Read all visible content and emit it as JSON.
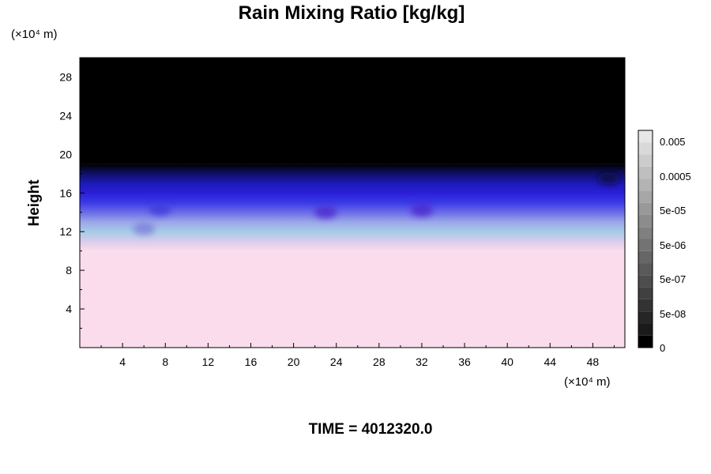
{
  "chart_data": {
    "type": "heatmap",
    "title": "Rain Mixing Ratio [kg/kg]",
    "xlabel": "",
    "ylabel": "Height",
    "x_unit": "(×10⁴ m)",
    "y_unit": "(×10⁴ m)",
    "xlim": [
      0,
      51
    ],
    "ylim": [
      0,
      30
    ],
    "xticks": [
      4,
      8,
      12,
      16,
      20,
      24,
      28,
      32,
      36,
      40,
      44,
      48
    ],
    "yticks": [
      4,
      8,
      12,
      16,
      20,
      24,
      28
    ],
    "footer": "TIME = 4012320.0",
    "colorbar": {
      "labels": [
        "0.005",
        "0.0005",
        "5e-05",
        "5e-06",
        "5e-07",
        "5e-08",
        "0"
      ],
      "scale": "log",
      "colors": [
        "#000000",
        "#1a1a1a",
        "#262626",
        "#333333",
        "#404040",
        "#4d4d4d",
        "#595959",
        "#666666",
        "#737373",
        "#808080",
        "#8c8c8c",
        "#999999",
        "#a6a6a6",
        "#b3b3b3",
        "#bfbfbf",
        "#cccccc",
        "#d9d9d9",
        "#e6e6e6"
      ]
    },
    "layers": [
      {
        "name": "lower",
        "y_range": [
          0,
          10
        ],
        "color": "#fbdcec"
      },
      {
        "name": "transition",
        "y_range": [
          10,
          19
        ],
        "colors": [
          "#fbdcec",
          "#d8ccec",
          "#a6cbe8",
          "#9aa6e8",
          "#6b6be8",
          "#3a3ae6",
          "#2a1fd8",
          "#1d19b8",
          "#101066",
          "#000000"
        ]
      },
      {
        "name": "upper",
        "y_range": [
          19,
          30
        ],
        "color": "#000000"
      }
    ],
    "features": [
      {
        "x": 6.0,
        "y": 12.3,
        "color": "#7a7ad8"
      },
      {
        "x": 7.5,
        "y": 14.3,
        "color": "#3a3ad8"
      },
      {
        "x": 23.0,
        "y": 14.0,
        "color": "#4a22c8"
      },
      {
        "x": 32.0,
        "y": 14.2,
        "color": "#4a22c8"
      },
      {
        "x": 49.5,
        "y": 17.5,
        "color": "#0a0a40"
      }
    ]
  }
}
